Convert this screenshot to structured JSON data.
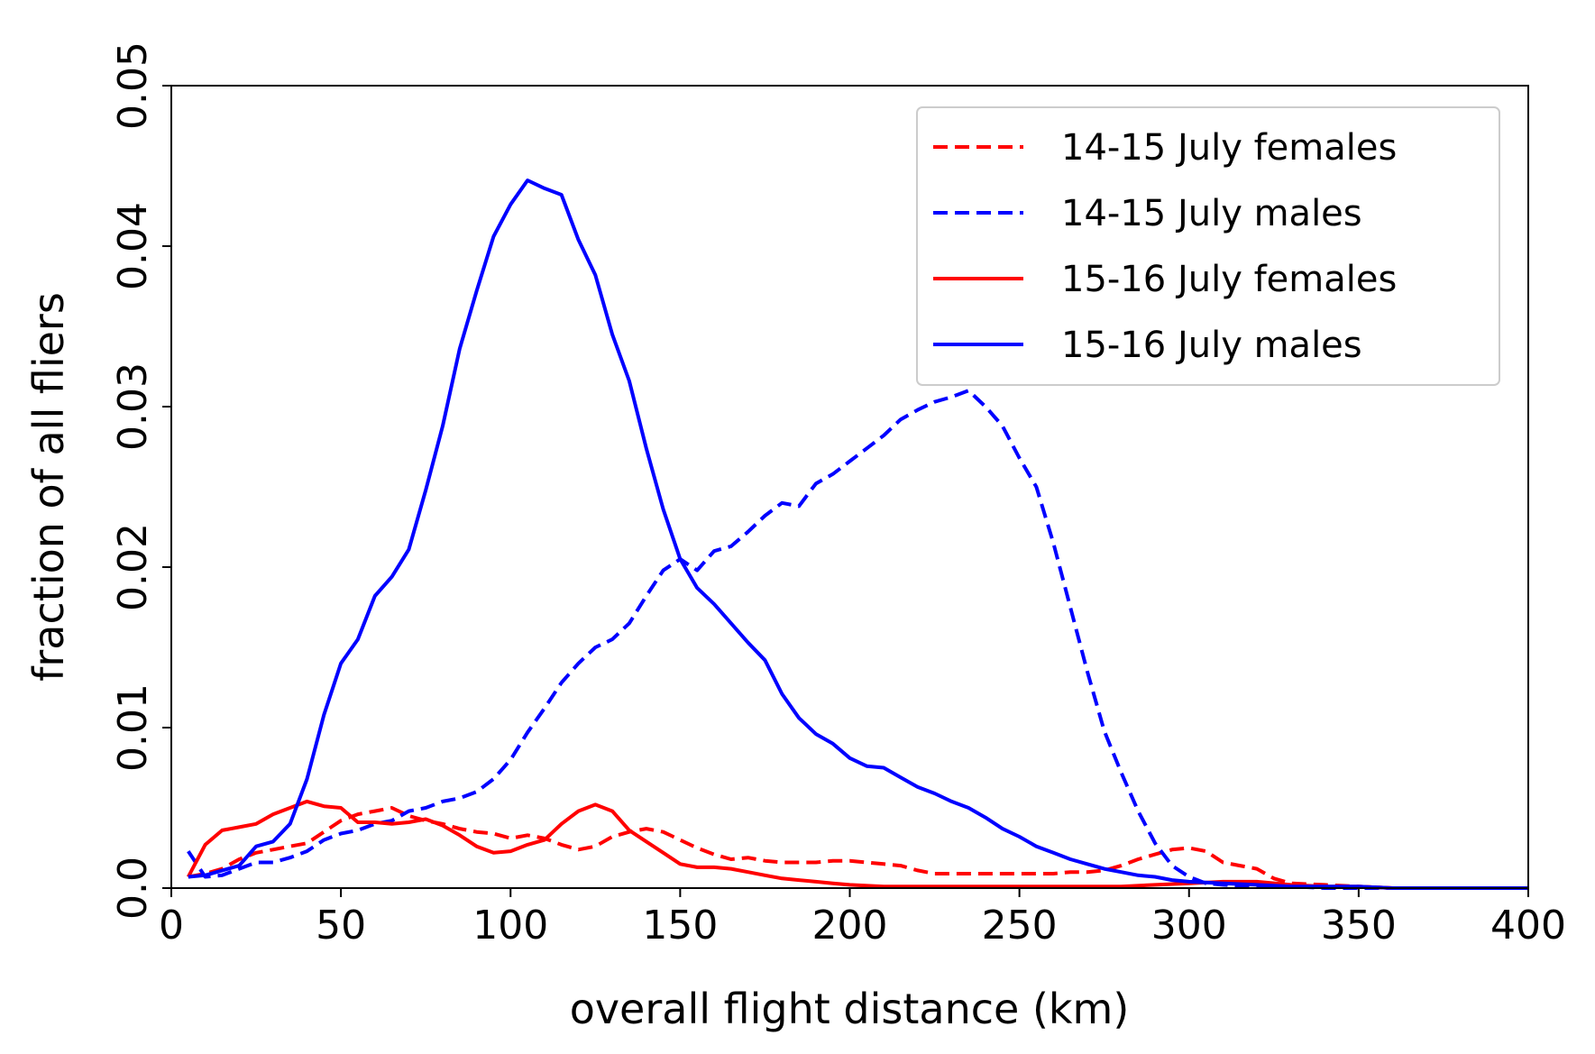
{
  "chart_data": {
    "type": "line",
    "title": "",
    "xlabel": "overall flight distance (km)",
    "ylabel": "fraction of all fliers",
    "xlim": [
      0,
      400
    ],
    "ylim": [
      0,
      0.05
    ],
    "xticks": [
      "0",
      "50",
      "100",
      "150",
      "200",
      "250",
      "300",
      "350",
      "400"
    ],
    "yticks": [
      "0.0",
      "0.01",
      "0.02",
      "0.03",
      "0.04",
      "0.05"
    ],
    "grid": false,
    "legend_position": "top-right",
    "series": [
      {
        "name": "14-15 July females",
        "color": "#ff0000",
        "style": "dashed",
        "x": [
          5,
          10,
          15,
          20,
          25,
          30,
          35,
          40,
          45,
          50,
          55,
          60,
          65,
          70,
          75,
          80,
          85,
          90,
          95,
          100,
          105,
          110,
          115,
          120,
          125,
          130,
          135,
          140,
          145,
          150,
          155,
          160,
          165,
          170,
          175,
          180,
          185,
          190,
          195,
          200,
          205,
          210,
          215,
          220,
          225,
          230,
          235,
          240,
          245,
          250,
          255,
          260,
          265,
          270,
          275,
          280,
          285,
          290,
          295,
          300,
          305,
          310,
          315,
          320,
          325,
          330,
          340,
          350,
          360,
          370,
          380,
          390,
          400
        ],
        "y": [
          0.0007,
          0.0009,
          0.0012,
          0.0018,
          0.0022,
          0.0024,
          0.0026,
          0.0028,
          0.0035,
          0.0042,
          0.0046,
          0.0048,
          0.005,
          0.0045,
          0.0042,
          0.004,
          0.0037,
          0.0035,
          0.0034,
          0.0031,
          0.0033,
          0.0031,
          0.0027,
          0.0024,
          0.0026,
          0.0032,
          0.0035,
          0.0037,
          0.0035,
          0.003,
          0.0025,
          0.0021,
          0.0018,
          0.0019,
          0.0017,
          0.0016,
          0.0016,
          0.0016,
          0.0017,
          0.0017,
          0.0016,
          0.0015,
          0.0014,
          0.0011,
          0.0009,
          0.0009,
          0.0009,
          0.0009,
          0.0009,
          0.0009,
          0.0009,
          0.0009,
          0.001,
          0.001,
          0.0011,
          0.0014,
          0.0018,
          0.0021,
          0.0024,
          0.0025,
          0.0023,
          0.0016,
          0.0014,
          0.0012,
          0.0006,
          0.0003,
          0.0002,
          0.0001,
          0.0,
          0.0,
          0.0,
          0.0,
          0.0
        ]
      },
      {
        "name": "14-15 July males",
        "color": "#0000ff",
        "style": "dashed",
        "x": [
          5,
          10,
          15,
          20,
          25,
          30,
          35,
          40,
          45,
          50,
          55,
          60,
          65,
          70,
          75,
          80,
          85,
          90,
          95,
          100,
          105,
          110,
          115,
          120,
          125,
          130,
          135,
          140,
          145,
          150,
          155,
          160,
          165,
          170,
          175,
          180,
          185,
          190,
          195,
          200,
          205,
          210,
          215,
          220,
          225,
          230,
          235,
          240,
          245,
          250,
          255,
          260,
          265,
          270,
          275,
          280,
          285,
          290,
          295,
          300,
          305,
          310,
          320,
          330,
          340,
          350,
          360,
          370,
          380,
          390,
          400
        ],
        "y": [
          0.0023,
          0.0007,
          0.0008,
          0.0012,
          0.0016,
          0.0016,
          0.0019,
          0.0023,
          0.003,
          0.0034,
          0.0036,
          0.004,
          0.0042,
          0.0048,
          0.005,
          0.0054,
          0.0056,
          0.006,
          0.0068,
          0.008,
          0.0097,
          0.0112,
          0.0128,
          0.014,
          0.015,
          0.0155,
          0.0165,
          0.0182,
          0.0198,
          0.0205,
          0.0198,
          0.021,
          0.0213,
          0.0222,
          0.0232,
          0.024,
          0.0238,
          0.0252,
          0.0258,
          0.0266,
          0.0274,
          0.0282,
          0.0292,
          0.0298,
          0.0303,
          0.0306,
          0.031,
          0.03,
          0.0288,
          0.0268,
          0.025,
          0.0215,
          0.0175,
          0.0135,
          0.0098,
          0.0072,
          0.0048,
          0.0028,
          0.0014,
          0.0007,
          0.0003,
          0.0002,
          0.0001,
          0.0001,
          0.0,
          0.0,
          0.0,
          0.0,
          0.0,
          0.0,
          0.0
        ]
      },
      {
        "name": "15-16 July females",
        "color": "#ff0000",
        "style": "solid",
        "x": [
          5,
          10,
          15,
          20,
          25,
          30,
          35,
          40,
          45,
          50,
          55,
          60,
          65,
          70,
          75,
          80,
          85,
          90,
          95,
          100,
          105,
          110,
          115,
          120,
          125,
          130,
          135,
          140,
          145,
          150,
          155,
          160,
          165,
          170,
          175,
          180,
          185,
          190,
          195,
          200,
          210,
          220,
          230,
          240,
          250,
          260,
          270,
          280,
          290,
          300,
          310,
          320,
          330,
          340,
          350,
          360,
          370,
          380,
          390,
          400
        ],
        "y": [
          0.0007,
          0.0027,
          0.0036,
          0.0038,
          0.004,
          0.0046,
          0.005,
          0.0054,
          0.0051,
          0.005,
          0.0041,
          0.0041,
          0.004,
          0.0041,
          0.0043,
          0.0039,
          0.0033,
          0.0026,
          0.0022,
          0.0023,
          0.0027,
          0.003,
          0.004,
          0.0048,
          0.0052,
          0.0048,
          0.0036,
          0.0029,
          0.0022,
          0.0015,
          0.0013,
          0.0013,
          0.0012,
          0.001,
          0.0008,
          0.0006,
          0.0005,
          0.0004,
          0.0003,
          0.0002,
          0.0001,
          0.0001,
          0.0001,
          0.0001,
          0.0001,
          0.0001,
          0.0001,
          0.0001,
          0.0002,
          0.0003,
          0.0004,
          0.0004,
          0.0002,
          0.0001,
          0.0001,
          0.0,
          0.0,
          0.0,
          0.0,
          0.0
        ]
      },
      {
        "name": "15-16 July males",
        "color": "#0000ff",
        "style": "solid",
        "x": [
          5,
          10,
          15,
          20,
          25,
          30,
          35,
          40,
          45,
          50,
          55,
          60,
          65,
          70,
          75,
          80,
          85,
          90,
          95,
          100,
          105,
          110,
          115,
          120,
          125,
          130,
          135,
          140,
          145,
          150,
          155,
          160,
          165,
          170,
          175,
          180,
          185,
          190,
          195,
          200,
          205,
          210,
          215,
          220,
          225,
          230,
          235,
          240,
          245,
          250,
          255,
          260,
          265,
          270,
          275,
          280,
          285,
          290,
          295,
          300,
          310,
          320,
          330,
          340,
          350,
          360,
          370,
          380,
          390,
          400
        ],
        "y": [
          0.0007,
          0.0008,
          0.0011,
          0.0014,
          0.0026,
          0.0029,
          0.004,
          0.0068,
          0.0108,
          0.014,
          0.0155,
          0.0182,
          0.0194,
          0.0211,
          0.0248,
          0.0288,
          0.0336,
          0.0372,
          0.0406,
          0.0426,
          0.0441,
          0.0436,
          0.0432,
          0.0404,
          0.0382,
          0.0345,
          0.0316,
          0.0274,
          0.0236,
          0.0205,
          0.0187,
          0.0177,
          0.0165,
          0.0153,
          0.0142,
          0.0121,
          0.0106,
          0.0096,
          0.009,
          0.0081,
          0.0076,
          0.0075,
          0.0069,
          0.0063,
          0.0059,
          0.0054,
          0.005,
          0.0044,
          0.0037,
          0.0032,
          0.0026,
          0.0022,
          0.0018,
          0.0015,
          0.0012,
          0.001,
          0.0008,
          0.0007,
          0.0005,
          0.0004,
          0.0003,
          0.0002,
          0.0001,
          0.0001,
          0.0001,
          0.0,
          0.0,
          0.0,
          0.0,
          0.0
        ]
      }
    ]
  }
}
